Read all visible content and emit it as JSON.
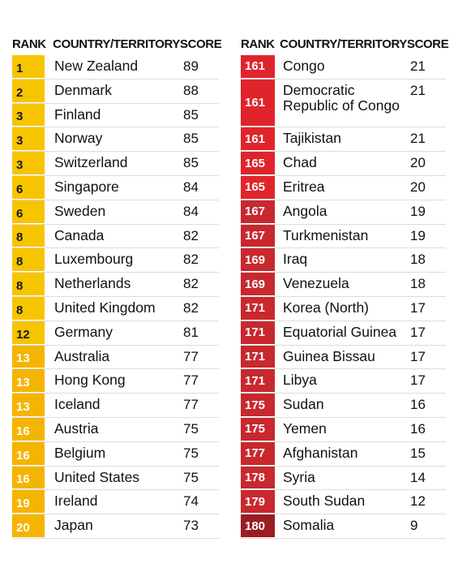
{
  "colors": {
    "rank_light_text_bg": "#f7c400",
    "rank_orange": "#f5b400",
    "rank_red": "#e0242c",
    "rank_darkred": "#c8282e",
    "rank_maroon": "#9c1c24"
  },
  "chart_data": [
    {
      "type": "table",
      "columns": [
        "RANK",
        "COUNTRY/TERRITORY",
        "SCORE"
      ],
      "rows": [
        {
          "rank": "1",
          "country": "New Zealand",
          "score": "89",
          "color": "#f7c400",
          "rank_text": "#1a1a1a"
        },
        {
          "rank": "2",
          "country": "Denmark",
          "score": "88",
          "color": "#f7c400",
          "rank_text": "#1a1a1a"
        },
        {
          "rank": "3",
          "country": "Finland",
          "score": "85",
          "color": "#f7c400",
          "rank_text": "#1a1a1a"
        },
        {
          "rank": "3",
          "country": "Norway",
          "score": "85",
          "color": "#f7c400",
          "rank_text": "#1a1a1a"
        },
        {
          "rank": "3",
          "country": "Switzerland",
          "score": "85",
          "color": "#f7c400",
          "rank_text": "#1a1a1a"
        },
        {
          "rank": "6",
          "country": "Singapore",
          "score": "84",
          "color": "#f7c400",
          "rank_text": "#1a1a1a"
        },
        {
          "rank": "6",
          "country": "Sweden",
          "score": "84",
          "color": "#f7c400",
          "rank_text": "#1a1a1a"
        },
        {
          "rank": "8",
          "country": "Canada",
          "score": "82",
          "color": "#f7c400",
          "rank_text": "#1a1a1a"
        },
        {
          "rank": "8",
          "country": "Luxembourg",
          "score": "82",
          "color": "#f7c400",
          "rank_text": "#1a1a1a"
        },
        {
          "rank": "8",
          "country": "Netherlands",
          "score": "82",
          "color": "#f7c400",
          "rank_text": "#1a1a1a"
        },
        {
          "rank": "8",
          "country": "United Kingdom",
          "score": "82",
          "color": "#f7c400",
          "rank_text": "#1a1a1a"
        },
        {
          "rank": "12",
          "country": "Germany",
          "score": "81",
          "color": "#f7c400",
          "rank_text": "#1a1a1a"
        },
        {
          "rank": "13",
          "country": "Australia",
          "score": "77",
          "color": "#f5b400",
          "rank_text": "#ffffff"
        },
        {
          "rank": "13",
          "country": "Hong Kong",
          "score": "77",
          "color": "#f5b400",
          "rank_text": "#ffffff"
        },
        {
          "rank": "13",
          "country": "Iceland",
          "score": "77",
          "color": "#f5b400",
          "rank_text": "#ffffff"
        },
        {
          "rank": "16",
          "country": "Austria",
          "score": "75",
          "color": "#f5b400",
          "rank_text": "#ffffff"
        },
        {
          "rank": "16",
          "country": "Belgium",
          "score": "75",
          "color": "#f5b400",
          "rank_text": "#ffffff"
        },
        {
          "rank": "16",
          "country": "United States",
          "score": "75",
          "color": "#f5b400",
          "rank_text": "#ffffff"
        },
        {
          "rank": "19",
          "country": "Ireland",
          "score": "74",
          "color": "#f5b400",
          "rank_text": "#ffffff"
        },
        {
          "rank": "20",
          "country": "Japan",
          "score": "73",
          "color": "#f5b400",
          "rank_text": "#ffffff"
        }
      ]
    },
    {
      "type": "table",
      "columns": [
        "RANK",
        "COUNTRY/TERRITORY",
        "SCORE"
      ],
      "rows": [
        {
          "rank": "161",
          "country": "Congo",
          "score": "21",
          "color": "#e0242c",
          "rank_text": "#ffffff"
        },
        {
          "rank": "161",
          "country": "Democratic Republic of Congo",
          "score": "21",
          "color": "#e0242c",
          "rank_text": "#ffffff",
          "tall": true
        },
        {
          "rank": "161",
          "country": "Tajikistan",
          "score": "21",
          "color": "#e0242c",
          "rank_text": "#ffffff"
        },
        {
          "rank": "165",
          "country": "Chad",
          "score": "20",
          "color": "#e0242c",
          "rank_text": "#ffffff"
        },
        {
          "rank": "165",
          "country": "Eritrea",
          "score": "20",
          "color": "#e0242c",
          "rank_text": "#ffffff"
        },
        {
          "rank": "167",
          "country": "Angola",
          "score": "19",
          "color": "#c8282e",
          "rank_text": "#ffffff"
        },
        {
          "rank": "167",
          "country": "Turkmenistan",
          "score": "19",
          "color": "#c8282e",
          "rank_text": "#ffffff"
        },
        {
          "rank": "169",
          "country": "Iraq",
          "score": "18",
          "color": "#c8282e",
          "rank_text": "#ffffff"
        },
        {
          "rank": "169",
          "country": "Venezuela",
          "score": "18",
          "color": "#c8282e",
          "rank_text": "#ffffff"
        },
        {
          "rank": "171",
          "country": "Korea (North)",
          "score": "17",
          "color": "#c8282e",
          "rank_text": "#ffffff"
        },
        {
          "rank": "171",
          "country": "Equatorial Guinea",
          "score": "17",
          "color": "#c8282e",
          "rank_text": "#ffffff"
        },
        {
          "rank": "171",
          "country": "Guinea Bissau",
          "score": "17",
          "color": "#c8282e",
          "rank_text": "#ffffff"
        },
        {
          "rank": "171",
          "country": "Libya",
          "score": "17",
          "color": "#c8282e",
          "rank_text": "#ffffff"
        },
        {
          "rank": "175",
          "country": "Sudan",
          "score": "16",
          "color": "#c8282e",
          "rank_text": "#ffffff"
        },
        {
          "rank": "175",
          "country": "Yemen",
          "score": "16",
          "color": "#c8282e",
          "rank_text": "#ffffff"
        },
        {
          "rank": "177",
          "country": "Afghanistan",
          "score": "15",
          "color": "#c8282e",
          "rank_text": "#ffffff"
        },
        {
          "rank": "178",
          "country": "Syria",
          "score": "14",
          "color": "#c8282e",
          "rank_text": "#ffffff"
        },
        {
          "rank": "179",
          "country": "South Sudan",
          "score": "12",
          "color": "#c8282e",
          "rank_text": "#ffffff"
        },
        {
          "rank": "180",
          "country": "Somalia",
          "score": "9",
          "color": "#9c1c24",
          "rank_text": "#ffffff"
        }
      ]
    }
  ]
}
